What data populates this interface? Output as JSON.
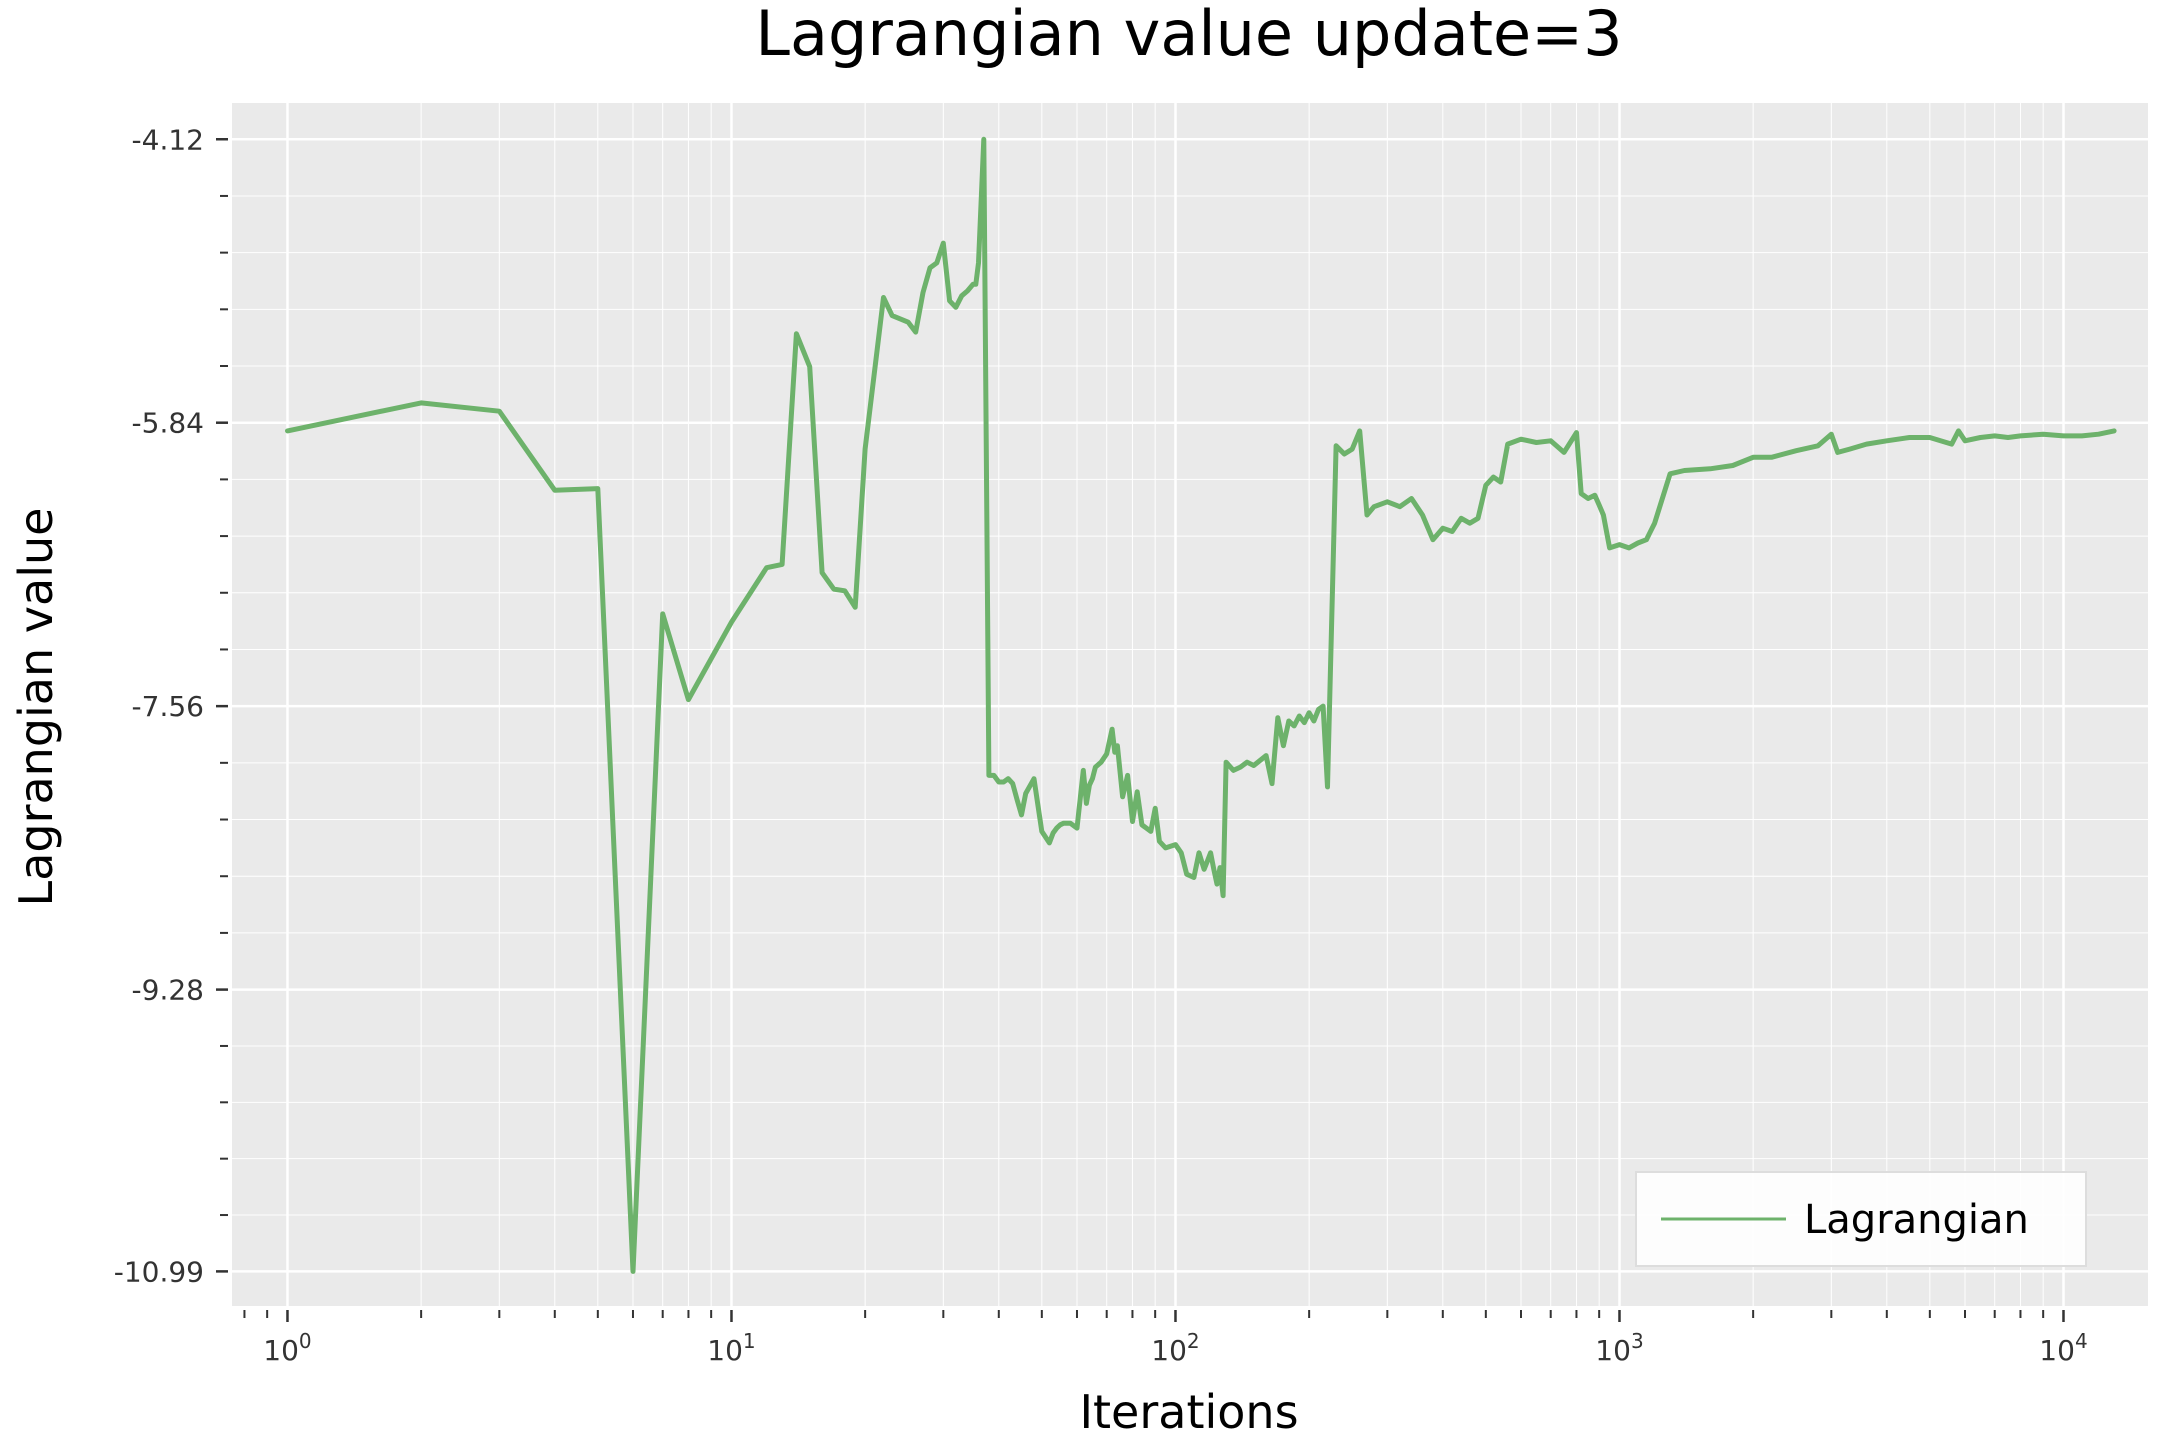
{
  "chart_data": {
    "type": "line",
    "title": "Lagrangian value update=3",
    "xlabel": "Iterations",
    "ylabel": "Lagrangian value",
    "x_scale": "log",
    "xlim": [
      0.75,
      15500
    ],
    "ylim": [
      -11.2,
      -3.9
    ],
    "x_ticks": [
      {
        "value": 1,
        "base": "10",
        "exp": "0"
      },
      {
        "value": 10,
        "base": "10",
        "exp": "1"
      },
      {
        "value": 100,
        "base": "10",
        "exp": "2"
      },
      {
        "value": 1000,
        "base": "10",
        "exp": "3"
      },
      {
        "value": 10000,
        "base": "10",
        "exp": "4"
      }
    ],
    "y_ticks": [
      {
        "value": -4.12,
        "label": "-4.12"
      },
      {
        "value": -5.84,
        "label": "-5.84"
      },
      {
        "value": -7.56,
        "label": "-7.56"
      },
      {
        "value": -9.28,
        "label": "-9.28"
      },
      {
        "value": -10.99,
        "label": "-10.99"
      }
    ],
    "grid": true,
    "background": "#eaeaea",
    "legend_position": "lower-right",
    "series": [
      {
        "name": "Lagrangian",
        "color": "#6db26b",
        "x": [
          1,
          2,
          3,
          4,
          5,
          6,
          7,
          8,
          10,
          12,
          13,
          14,
          15,
          16,
          17,
          18,
          19,
          20,
          22,
          23,
          24,
          25,
          26,
          27,
          28,
          29,
          30,
          31,
          32,
          33,
          34,
          35,
          35.5,
          36,
          37,
          38,
          39,
          40,
          41,
          42,
          43,
          44,
          45,
          46,
          48,
          50,
          52,
          53,
          54,
          55,
          56,
          58,
          60,
          62,
          63,
          64,
          65,
          66,
          68,
          70,
          72,
          73,
          74,
          76,
          78,
          80,
          82,
          84,
          86,
          88,
          90,
          92,
          95,
          100,
          103,
          106,
          110,
          113,
          116,
          118,
          120,
          122,
          124,
          126,
          128,
          130,
          135,
          140,
          145,
          150,
          155,
          160,
          165,
          170,
          175,
          180,
          185,
          190,
          195,
          200,
          205,
          210,
          215,
          220,
          230,
          240,
          250,
          260,
          270,
          280,
          300,
          320,
          340,
          360,
          380,
          400,
          420,
          440,
          460,
          480,
          500,
          520,
          540,
          560,
          600,
          650,
          700,
          750,
          800,
          820,
          850,
          880,
          900,
          920,
          950,
          1000,
          1050,
          1100,
          1150,
          1200,
          1300,
          1400,
          1600,
          1800,
          2000,
          2200,
          2500,
          2800,
          3000,
          3100,
          3300,
          3600,
          4000,
          4500,
          5000,
          5600,
          5800,
          6000,
          6500,
          7000,
          7500,
          8000,
          9000,
          10000,
          11000,
          12000,
          13000
        ],
        "y": [
          -5.89,
          -5.72,
          -5.77,
          -6.25,
          -6.24,
          -10.99,
          -7.0,
          -7.52,
          -7.05,
          -6.72,
          -6.7,
          -5.3,
          -5.5,
          -6.75,
          -6.85,
          -6.86,
          -6.96,
          -6.0,
          -5.08,
          -5.19,
          -5.21,
          -5.23,
          -5.29,
          -5.05,
          -4.9,
          -4.87,
          -4.75,
          -5.1,
          -5.14,
          -5.07,
          -5.04,
          -5.0,
          -5.0,
          -4.87,
          -4.12,
          -7.98,
          -7.98,
          -8.02,
          -8.02,
          -8.0,
          -8.03,
          -8.13,
          -8.22,
          -8.09,
          -8.0,
          -8.32,
          -8.39,
          -8.33,
          -8.3,
          -8.28,
          -8.27,
          -8.27,
          -8.3,
          -7.95,
          -8.15,
          -8.04,
          -8.0,
          -7.93,
          -7.9,
          -7.85,
          -7.7,
          -7.84,
          -7.8,
          -8.11,
          -7.98,
          -8.26,
          -8.08,
          -8.28,
          -8.3,
          -8.32,
          -8.18,
          -8.38,
          -8.42,
          -8.4,
          -8.45,
          -8.58,
          -8.6,
          -8.45,
          -8.55,
          -8.5,
          -8.45,
          -8.55,
          -8.64,
          -8.54,
          -8.71,
          -7.9,
          -7.95,
          -7.93,
          -7.9,
          -7.92,
          -7.89,
          -7.86,
          -8.03,
          -7.63,
          -7.8,
          -7.65,
          -7.68,
          -7.62,
          -7.66,
          -7.6,
          -7.65,
          -7.58,
          -7.56,
          -8.05,
          -5.98,
          -6.03,
          -6.0,
          -5.89,
          -6.4,
          -6.35,
          -6.32,
          -6.35,
          -6.3,
          -6.4,
          -6.55,
          -6.48,
          -6.5,
          -6.42,
          -6.45,
          -6.42,
          -6.22,
          -6.17,
          -6.2,
          -5.97,
          -5.94,
          -5.96,
          -5.95,
          -6.02,
          -5.9,
          -6.27,
          -6.3,
          -6.28,
          -6.34,
          -6.4,
          -6.6,
          -6.58,
          -6.6,
          -6.57,
          -6.55,
          -6.45,
          -6.15,
          -6.13,
          -6.12,
          -6.1,
          -6.05,
          -6.05,
          -6.01,
          -5.98,
          -5.91,
          -6.02,
          -6.0,
          -5.97,
          -5.95,
          -5.93,
          -5.93,
          -5.97,
          -5.89,
          -5.95,
          -5.93,
          -5.92,
          -5.93,
          -5.92,
          -5.91,
          -5.92,
          -5.92,
          -5.91,
          -5.89
        ]
      }
    ]
  }
}
